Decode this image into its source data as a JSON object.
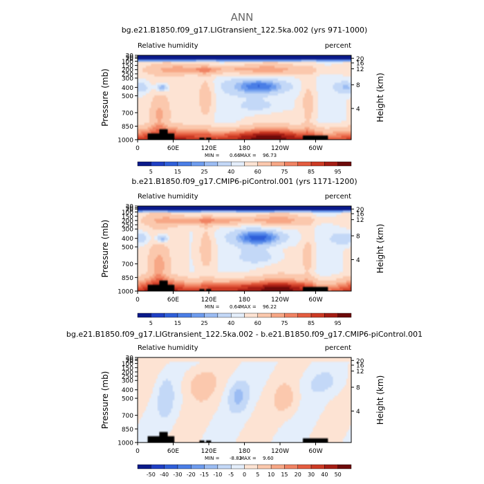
{
  "page_title": "ANN",
  "colors": {
    "rh_scale": [
      "#0a1a8a",
      "#1f3fc4",
      "#2f5fd9",
      "#4a7ee6",
      "#6e9cee",
      "#9bbcf3",
      "#c3d8f7",
      "#e4eefb",
      "#fde3d3",
      "#fbc8ad",
      "#f7a786",
      "#f08363",
      "#e45c3f",
      "#cc3a24",
      "#a51d14",
      "#6d0a0a"
    ],
    "diff_scale": [
      "#0a1a8a",
      "#1f3fc4",
      "#2f5fd9",
      "#4a7ee6",
      "#6e9cee",
      "#9bbcf3",
      "#c3d8f7",
      "#e4eefb",
      "#fde3d3",
      "#fbc8ad",
      "#f7a786",
      "#f08363",
      "#e45c3f",
      "#cc3a24",
      "#a51d14",
      "#6d0a0a"
    ],
    "terrain": "#000000"
  },
  "chart_data": [
    {
      "type": "heatmap",
      "title": "bg.e21.B1850.f09_g17.LIGtransient_122.5ka.002 (yrs 971-1000)",
      "left_label": "Relative humidity",
      "right_label": "percent",
      "ylabel": "Pressure (mb)",
      "y2label": "Height (km)",
      "x_ticks": [
        "0",
        "60E",
        "120E",
        "180",
        "120W",
        "60W"
      ],
      "y_ticks": [
        "30",
        "50",
        "70",
        "100",
        "150",
        "200",
        "250",
        "300",
        "400",
        "500",
        "700",
        "850",
        "1000"
      ],
      "y2_ticks": [
        "20",
        "16",
        "12",
        "8",
        "4"
      ],
      "min_label": "MIN =",
      "min_value": "0.66",
      "max_label": "MAX =",
      "max_value": "96.73",
      "colorbar_labels": [
        "5",
        "15",
        "25",
        "40",
        "60",
        "75",
        "85",
        "95"
      ],
      "scale": "rh"
    },
    {
      "type": "heatmap",
      "title": "b.e21.B1850.f09_g17.CMIP6-piControl.001 (yrs 1171-1200)",
      "left_label": "Relative humidity",
      "right_label": "percent",
      "ylabel": "Pressure (mb)",
      "y2label": "Height (km)",
      "x_ticks": [
        "0",
        "60E",
        "120E",
        "180",
        "120W",
        "60W"
      ],
      "y_ticks": [
        "30",
        "50",
        "70",
        "100",
        "150",
        "200",
        "250",
        "300",
        "400",
        "500",
        "700",
        "850",
        "1000"
      ],
      "y2_ticks": [
        "20",
        "16",
        "12",
        "8",
        "4"
      ],
      "min_label": "MIN =",
      "min_value": "0.64",
      "max_label": "MAX =",
      "max_value": "96.22",
      "colorbar_labels": [
        "5",
        "15",
        "25",
        "40",
        "60",
        "75",
        "85",
        "95"
      ],
      "scale": "rh"
    },
    {
      "type": "heatmap",
      "title": "bg.e21.B1850.f09_g17.LIGtransient_122.5ka.002 - b.e21.B1850.f09_g17.CMIP6-piControl.001",
      "left_label": "Relative humidity",
      "right_label": "percent",
      "ylabel": "Pressure (mb)",
      "y2label": "Height (km)",
      "x_ticks": [
        "0",
        "60E",
        "120E",
        "180",
        "120W",
        "60W"
      ],
      "y_ticks": [
        "30",
        "50",
        "70",
        "100",
        "150",
        "200",
        "250",
        "300",
        "400",
        "500",
        "700",
        "850",
        "1000"
      ],
      "y2_ticks": [
        "20",
        "16",
        "12",
        "8",
        "4"
      ],
      "min_label": "MIN =",
      "min_value": "-8.82",
      "max_label": "MAX =",
      "max_value": "9.60",
      "colorbar_labels": [
        "-50",
        "-40",
        "-30",
        "-20",
        "-15",
        "-10",
        "-5",
        "0",
        "5",
        "10",
        "15",
        "20",
        "30",
        "40",
        "50"
      ],
      "scale": "diff"
    }
  ]
}
